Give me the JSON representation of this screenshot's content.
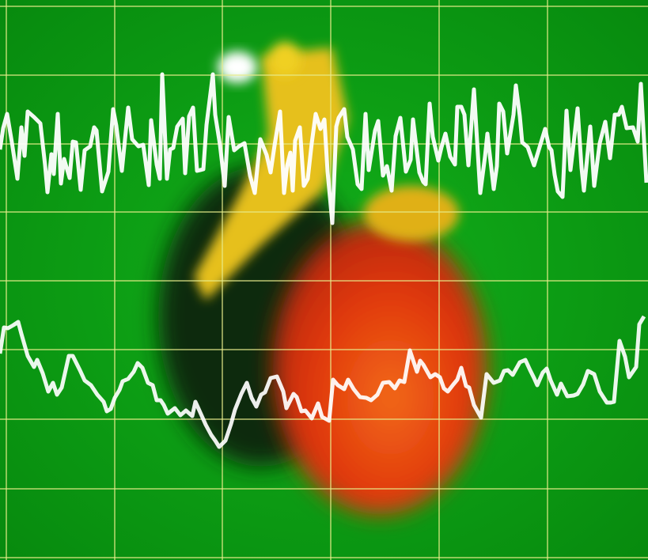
{
  "colors": {
    "background": "#0ea416",
    "background_dark": "#067a0c",
    "grid": "#e8ec8a",
    "trace": "#ffffff",
    "heart_red": "#e23a10",
    "heart_orange": "#f06a12",
    "heart_dark": "#0b2a08",
    "heart_yellow": "#e8c81a"
  },
  "icons": [
    "heart-illustration",
    "ecg-trace"
  ]
}
